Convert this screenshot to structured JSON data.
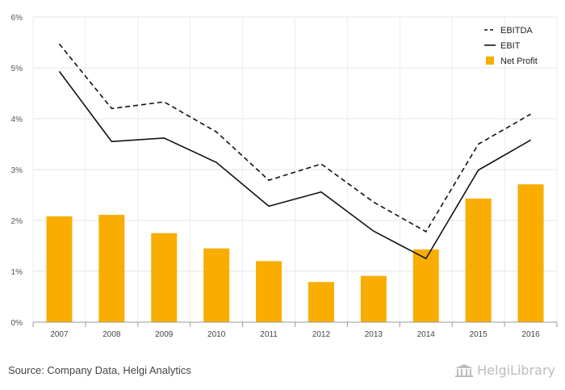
{
  "chart_data": {
    "type": "bar",
    "categories": [
      "2007",
      "2008",
      "2009",
      "2010",
      "2011",
      "2012",
      "2013",
      "2014",
      "2015",
      "2016"
    ],
    "y_tick_labels": [
      "0%",
      "1%",
      "2%",
      "3%",
      "4%",
      "5%",
      "6%"
    ],
    "ylim": [
      0,
      6
    ],
    "grid": true,
    "legend_position": "top-right",
    "series": [
      {
        "name": "Net Profit",
        "kind": "bar",
        "color": "#f9ad00",
        "values": [
          2.08,
          2.11,
          1.75,
          1.45,
          1.2,
          0.79,
          0.91,
          1.43,
          2.43,
          2.71
        ]
      },
      {
        "name": "EBITDA",
        "kind": "line",
        "style": "dashed",
        "color": "#111111",
        "values": [
          5.47,
          4.2,
          4.33,
          3.74,
          2.79,
          3.11,
          2.36,
          1.78,
          3.5,
          4.09
        ]
      },
      {
        "name": "EBIT",
        "kind": "line",
        "style": "solid",
        "color": "#111111",
        "values": [
          4.93,
          3.55,
          3.62,
          3.14,
          2.28,
          2.56,
          1.79,
          1.25,
          2.99,
          3.58
        ]
      }
    ]
  },
  "footer": {
    "source": "Source: Company Data, Helgi Analytics",
    "logo_text": "HelgiLibrary"
  }
}
